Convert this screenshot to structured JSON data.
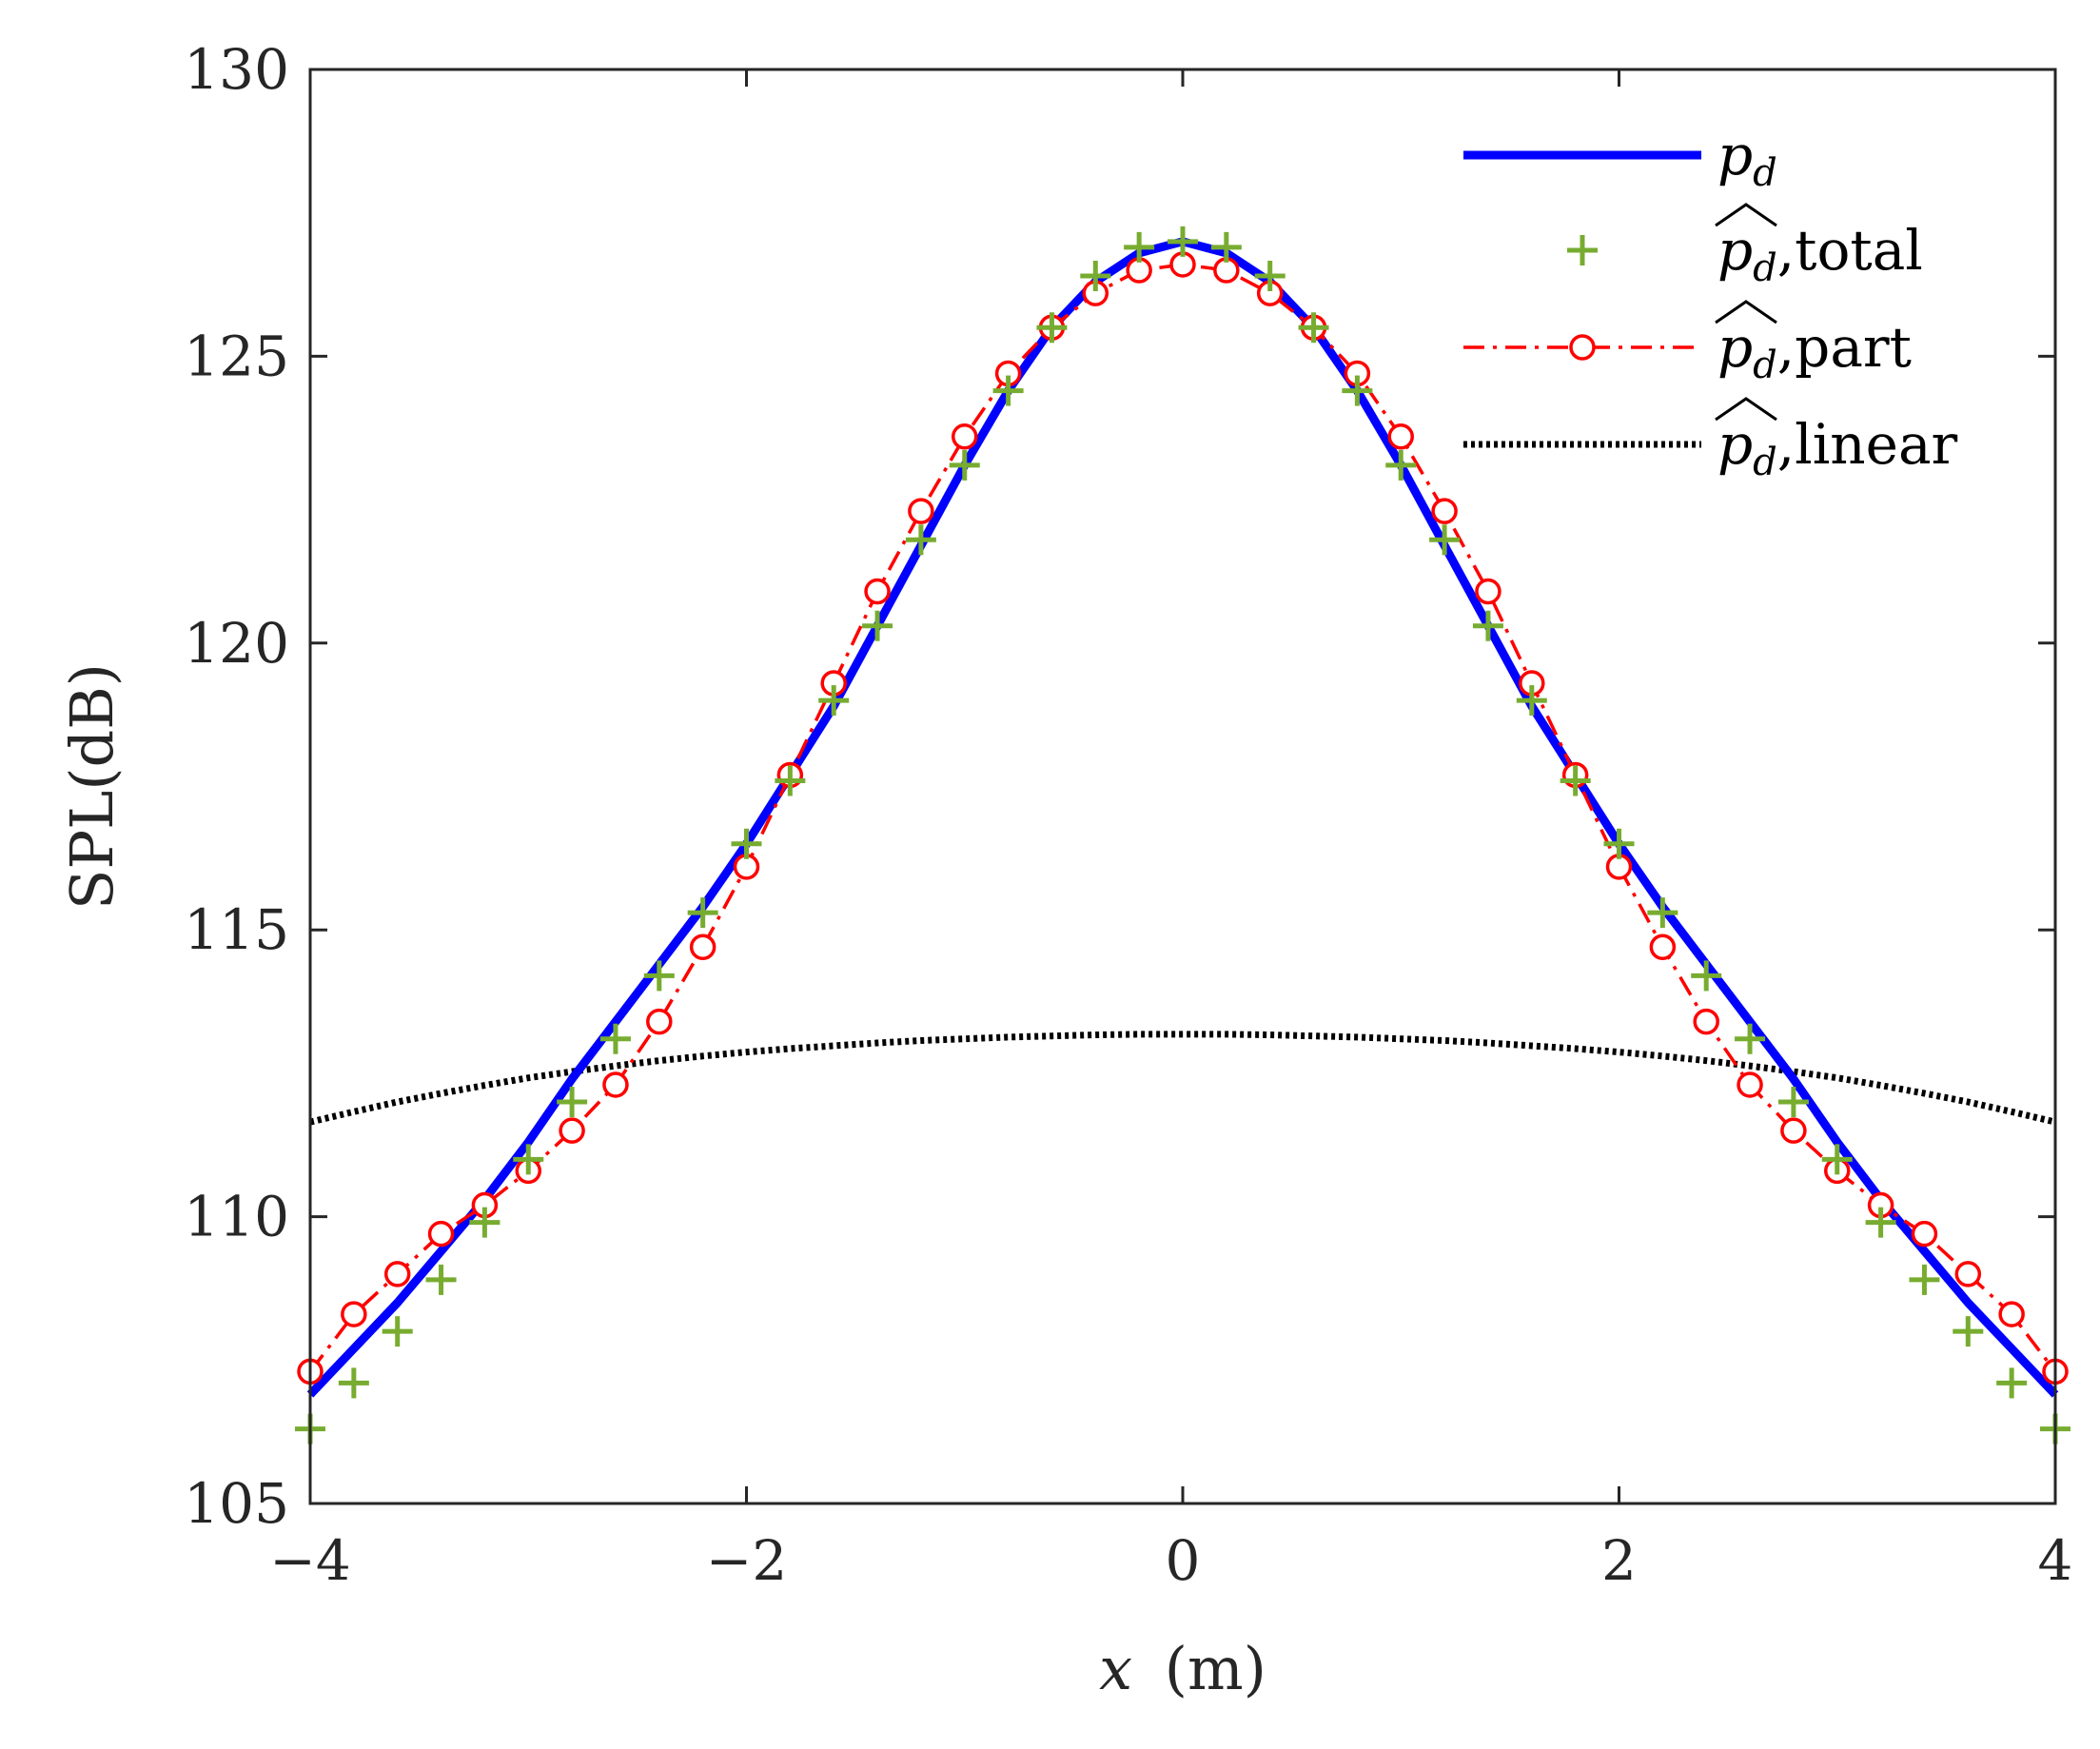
{
  "chart_data": {
    "type": "line",
    "title": "",
    "xlabel": "x",
    "xlabel_unit": "(m)",
    "ylabel": "SPL(dB)",
    "xlim": [
      -4,
      4
    ],
    "ylim": [
      105,
      130
    ],
    "xticks": [
      -4,
      -2,
      0,
      2,
      4
    ],
    "xtick_labels": [
      "−4",
      "−2",
      "0",
      "2",
      "4"
    ],
    "yticks": [
      105,
      110,
      115,
      120,
      125,
      130
    ],
    "ytick_labels": [
      "105",
      "110",
      "115",
      "120",
      "125",
      "130"
    ],
    "grid": false,
    "legend_position": "top-right",
    "x": [
      -4.0,
      -3.8,
      -3.6,
      -3.4,
      -3.2,
      -3.0,
      -2.8,
      -2.6,
      -2.4,
      -2.2,
      -2.0,
      -1.8,
      -1.6,
      -1.4,
      -1.2,
      -1.0,
      -0.8,
      -0.6,
      -0.4,
      -0.2,
      0.0,
      0.2,
      0.4,
      0.6,
      0.8,
      1.0,
      1.2,
      1.4,
      1.6,
      1.8,
      2.0,
      2.2,
      2.4,
      2.6,
      2.8,
      3.0,
      3.2,
      3.4,
      3.6,
      3.8,
      4.0
    ],
    "series": [
      {
        "name": "p_d",
        "label_main": "p",
        "label_sub": "d",
        "label_suffix": "",
        "color": "#0000ff",
        "style": "solid",
        "marker": "none",
        "values": [
          106.9,
          107.7,
          108.5,
          109.4,
          110.3,
          111.3,
          112.4,
          113.4,
          114.4,
          115.4,
          116.5,
          117.7,
          118.9,
          120.3,
          121.7,
          123.1,
          124.4,
          125.5,
          126.3,
          126.8,
          127.0,
          126.8,
          126.3,
          125.5,
          124.4,
          123.1,
          121.7,
          120.3,
          118.9,
          117.7,
          116.5,
          115.4,
          114.4,
          113.4,
          112.4,
          111.3,
          110.3,
          109.4,
          108.5,
          107.7,
          106.9
        ]
      },
      {
        "name": "p_d_hat_total",
        "label_main": "p",
        "label_sub": "d",
        "label_suffix": ",total",
        "color": "#77ac30",
        "style": "none",
        "marker": "plus",
        "values": [
          106.3,
          107.1,
          108.0,
          108.9,
          109.9,
          111.0,
          112.0,
          113.1,
          114.2,
          115.3,
          116.5,
          117.6,
          119.0,
          120.3,
          121.8,
          123.1,
          124.4,
          125.5,
          126.4,
          126.9,
          127.0,
          126.9,
          126.4,
          125.5,
          124.4,
          123.1,
          121.8,
          120.3,
          119.0,
          117.6,
          116.5,
          115.3,
          114.2,
          113.1,
          112.0,
          111.0,
          109.9,
          108.9,
          108.0,
          107.1,
          106.3
        ]
      },
      {
        "name": "p_d_hat_part",
        "label_main": "p",
        "label_sub": "d",
        "label_suffix": ",part",
        "color": "#ff0000",
        "style": "dashdot",
        "marker": "circle",
        "values": [
          107.3,
          108.3,
          109.0,
          109.7,
          110.2,
          110.8,
          111.5,
          112.3,
          113.4,
          114.7,
          116.1,
          117.7,
          119.3,
          120.9,
          122.3,
          123.6,
          124.7,
          125.5,
          126.1,
          126.5,
          126.6,
          126.5,
          126.1,
          125.5,
          124.7,
          123.6,
          122.3,
          120.9,
          119.3,
          117.7,
          116.1,
          114.7,
          113.4,
          112.3,
          111.5,
          110.8,
          110.2,
          109.7,
          109.0,
          108.3,
          107.3
        ]
      },
      {
        "name": "p_d_hat_linear",
        "label_main": "p",
        "label_sub": "d",
        "label_suffix": ",linear",
        "color": "#000000",
        "style": "dotted",
        "marker": "none",
        "values": [
          111.65,
          111.83,
          112.0,
          112.15,
          112.29,
          112.42,
          112.53,
          112.63,
          112.72,
          112.8,
          112.87,
          112.93,
          112.98,
          113.03,
          113.07,
          113.1,
          113.13,
          113.15,
          113.17,
          113.18,
          113.18,
          113.18,
          113.17,
          113.15,
          113.13,
          113.1,
          113.07,
          113.03,
          112.98,
          112.93,
          112.87,
          112.8,
          112.72,
          112.63,
          112.53,
          112.42,
          112.29,
          112.15,
          112.0,
          111.83,
          111.65
        ]
      }
    ]
  }
}
